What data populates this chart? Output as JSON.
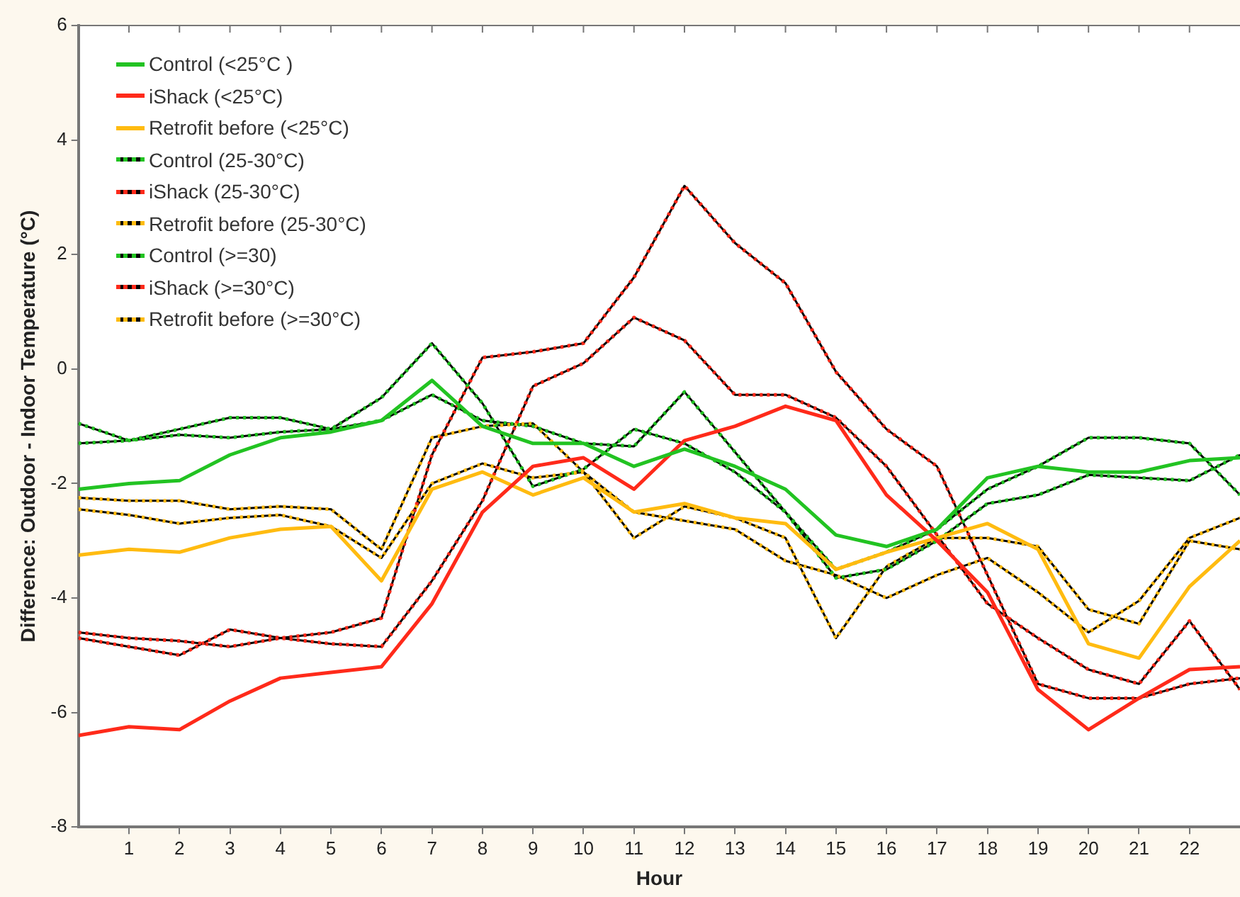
{
  "chart_data": {
    "type": "line",
    "xlabel": "Hour",
    "ylabel": "Difference: Outdoor - Indoor Temperature (°C)",
    "x": [
      0,
      1,
      2,
      3,
      4,
      5,
      6,
      7,
      8,
      9,
      10,
      11,
      12,
      13,
      14,
      15,
      16,
      17,
      18,
      19,
      20,
      21,
      22,
      23
    ],
    "xlim": [
      0,
      23
    ],
    "xticks": [
      1,
      2,
      3,
      4,
      5,
      6,
      7,
      8,
      9,
      10,
      11,
      12,
      13,
      14,
      15,
      16,
      17,
      18,
      19,
      20,
      21,
      22
    ],
    "ylim": [
      -8,
      6
    ],
    "yticks": [
      -8,
      -6,
      -4,
      -2,
      0,
      2,
      4,
      6
    ],
    "grid": false,
    "legend": "top left",
    "marker": "none",
    "series": [
      {
        "name": "Control (<25°C )",
        "color": "#22c322",
        "line_style": "solid",
        "values": [
          -2.1,
          -2.0,
          -1.95,
          -1.5,
          -1.2,
          -1.1,
          -0.9,
          -0.2,
          -1.0,
          -1.3,
          -1.3,
          -1.7,
          -1.4,
          -1.7,
          -2.1,
          -2.9,
          -3.1,
          -2.8,
          -1.9,
          -1.7,
          -1.8,
          -1.8,
          -1.6,
          -1.55
        ]
      },
      {
        "name": "iShack (<25°C)",
        "color": "#ff2a1a",
        "line_style": "solid",
        "values": [
          -6.4,
          -6.25,
          -6.3,
          -5.8,
          -5.4,
          -5.3,
          -5.2,
          -4.1,
          -2.5,
          -1.7,
          -1.55,
          -2.1,
          -1.25,
          -1.0,
          -0.65,
          -0.9,
          -2.2,
          -3.0,
          -3.9,
          -5.6,
          -6.3,
          -5.75,
          -5.25,
          -5.2
        ]
      },
      {
        "name": "Retrofit before (<25°C)",
        "color": "#ffbb10",
        "line_style": "solid",
        "values": [
          -3.25,
          -3.15,
          -3.2,
          -2.95,
          -2.8,
          -2.75,
          -3.7,
          -2.1,
          -1.8,
          -2.2,
          -1.9,
          -2.5,
          -2.35,
          -2.6,
          -2.7,
          -3.5,
          -3.2,
          -2.95,
          -2.7,
          -3.15,
          -4.8,
          -5.05,
          -3.8,
          -3.0
        ]
      },
      {
        "name": "Control (25-30°C)",
        "color": "#22c322",
        "line_style": "dotted",
        "values": [
          -1.3,
          -1.25,
          -1.15,
          -1.2,
          -1.1,
          -1.05,
          -0.9,
          -0.45,
          -0.9,
          -1.0,
          -1.3,
          -1.35,
          -0.4,
          -1.45,
          -2.5,
          -3.65,
          -3.5,
          -3.0,
          -2.35,
          -2.2,
          -1.85,
          -1.9,
          -1.95,
          -1.5
        ]
      },
      {
        "name": "iShack (25-30°C)",
        "color": "#ff2a1a",
        "line_style": "dotted",
        "values": [
          -4.7,
          -4.85,
          -5.0,
          -4.55,
          -4.7,
          -4.8,
          -4.85,
          -3.7,
          -2.3,
          -0.3,
          0.1,
          0.9,
          0.5,
          -0.45,
          -0.45,
          -0.85,
          -1.7,
          -2.9,
          -4.1,
          -4.7,
          -5.25,
          -5.5,
          -4.4,
          -5.6
        ]
      },
      {
        "name": "Retrofit before (25-30°C)",
        "color": "#ffbb10",
        "line_style": "dotted",
        "values": [
          -2.45,
          -2.55,
          -2.7,
          -2.6,
          -2.55,
          -2.75,
          -3.3,
          -2.0,
          -1.65,
          -1.9,
          -1.8,
          -2.5,
          -2.65,
          -2.8,
          -3.35,
          -3.6,
          -4.0,
          -3.6,
          -3.3,
          -3.9,
          -4.6,
          -4.05,
          -2.95,
          -2.6
        ]
      },
      {
        "name": "Control (>=30)",
        "color": "#22c322",
        "line_style": "dotted",
        "values": [
          -0.95,
          -1.25,
          -1.05,
          -0.85,
          -0.85,
          -1.05,
          -0.5,
          0.45,
          -0.6,
          -2.05,
          -1.75,
          -1.05,
          -1.3,
          -1.8,
          -2.5,
          -3.5,
          -3.2,
          -2.8,
          -2.1,
          -1.7,
          -1.2,
          -1.2,
          -1.3,
          -2.2
        ]
      },
      {
        "name": "iShack (>=30°C)",
        "color": "#ff2a1a",
        "line_style": "dotted",
        "values": [
          -4.6,
          -4.7,
          -4.75,
          -4.85,
          -4.7,
          -4.6,
          -4.35,
          -1.5,
          0.2,
          0.3,
          0.45,
          1.6,
          3.2,
          2.2,
          1.5,
          -0.05,
          -1.05,
          -1.7,
          -3.6,
          -5.5,
          -5.75,
          -5.75,
          -5.5,
          -5.4
        ]
      },
      {
        "name": "Retrofit before (>=30°C)",
        "color": "#ffbb10",
        "line_style": "dotted",
        "values": [
          -2.25,
          -2.3,
          -2.3,
          -2.45,
          -2.4,
          -2.45,
          -3.15,
          -1.2,
          -1.0,
          -0.95,
          -1.8,
          -2.95,
          -2.4,
          -2.6,
          -2.95,
          -4.7,
          -3.45,
          -2.95,
          -2.95,
          -3.1,
          -4.2,
          -4.45,
          -3.0,
          -3.15
        ]
      }
    ]
  }
}
